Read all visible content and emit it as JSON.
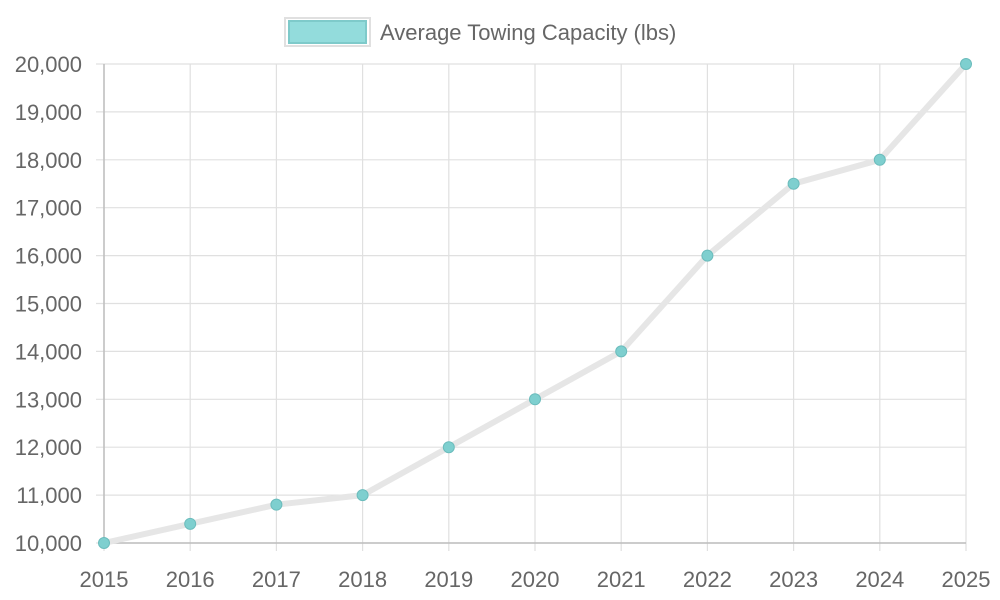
{
  "chart_data": {
    "type": "line",
    "categories": [
      "2015",
      "2016",
      "2017",
      "2018",
      "2019",
      "2020",
      "2021",
      "2022",
      "2023",
      "2024",
      "2025"
    ],
    "series": [
      {
        "name": "Average Towing Capacity (lbs)",
        "values": [
          10000,
          10400,
          10800,
          11000,
          12000,
          13000,
          14000,
          16000,
          17500,
          18000,
          20000
        ]
      }
    ],
    "title": "",
    "xlabel": "",
    "ylabel": "",
    "ylim": [
      10000,
      20000
    ],
    "yticks": [
      10000,
      11000,
      12000,
      13000,
      14000,
      15000,
      16000,
      17000,
      18000,
      19000,
      20000
    ],
    "ytick_labels": [
      "10,000",
      "11,000",
      "12,000",
      "13,000",
      "14,000",
      "15,000",
      "16,000",
      "17,000",
      "18,000",
      "19,000",
      "20,000"
    ],
    "grid": true,
    "legend": "top-center",
    "colors": {
      "line": "#e6e6e6",
      "point": "#7ecfcf",
      "point_border": "#6bbcbc",
      "legend_fill": "#93dcdc",
      "legend_border": "#7ecaca",
      "legend_outline": "#e0e0e0",
      "grid": "#e0e0e0",
      "axis": "#bdbdbd",
      "text": "#666666"
    }
  }
}
